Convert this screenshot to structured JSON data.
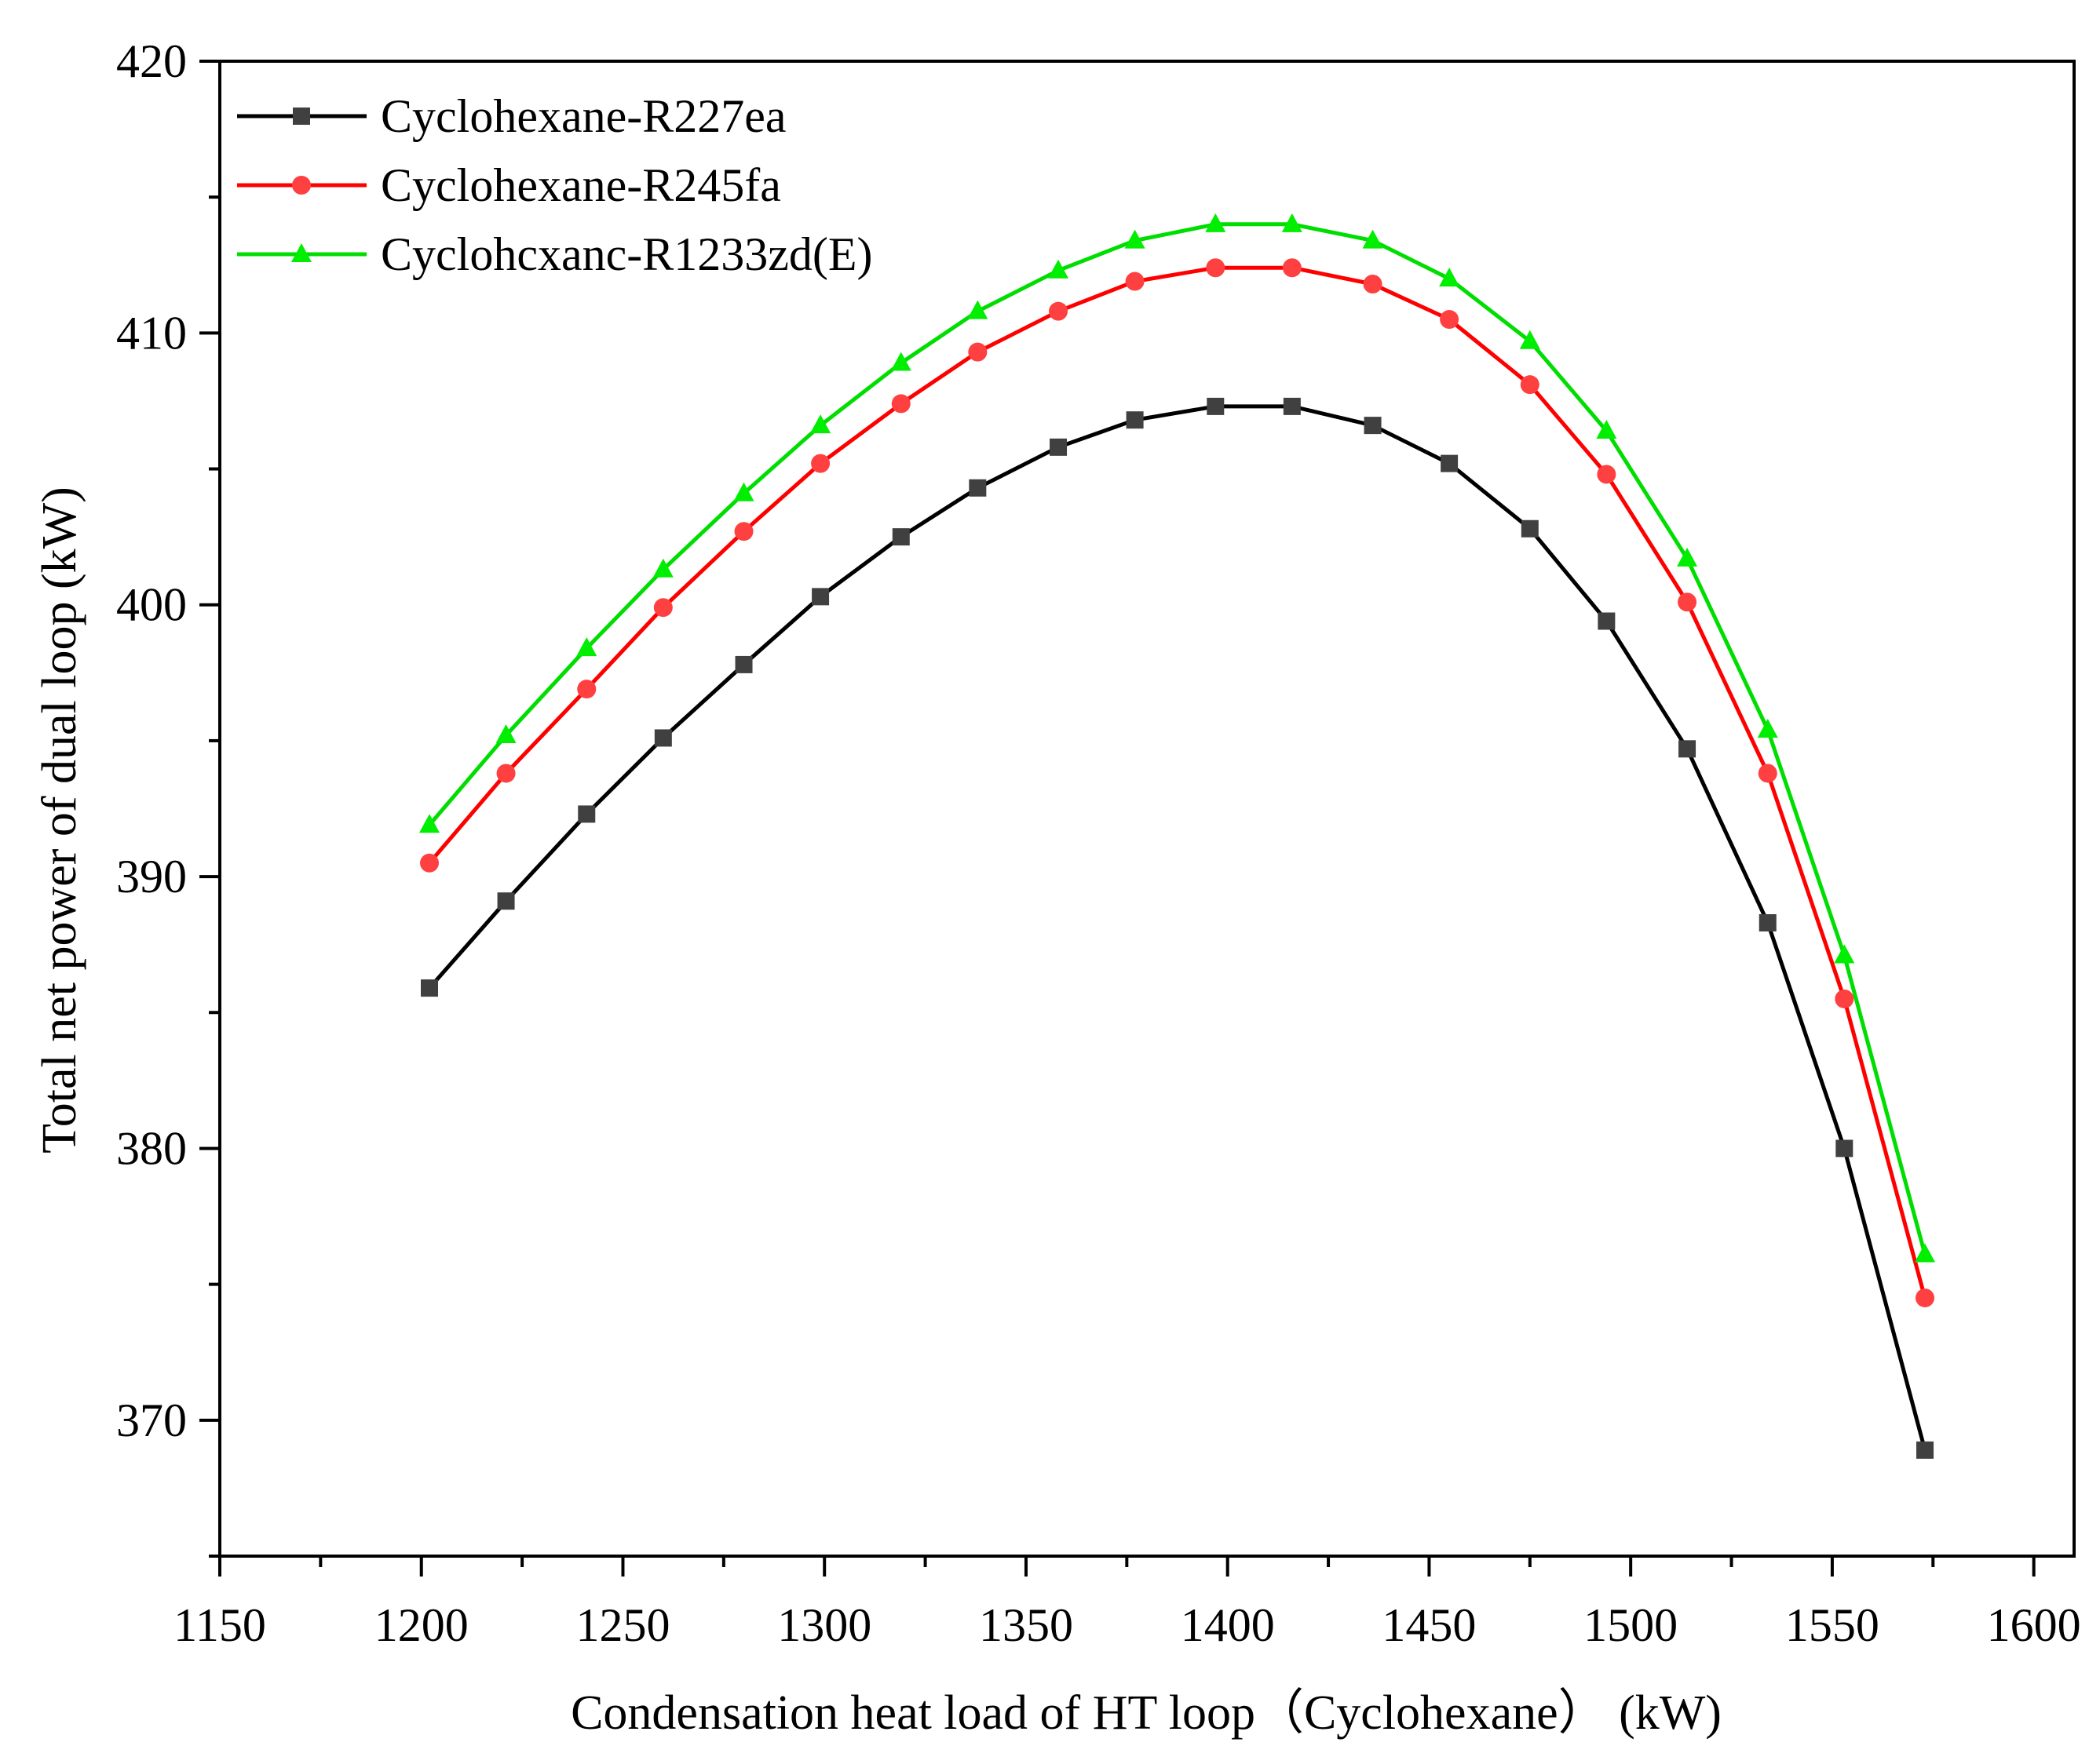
{
  "chart_data": {
    "type": "line",
    "title": "",
    "xlabel": "Condensation heat load of HT loop（Cyclohexane） (kW)",
    "ylabel": "Total net power of dual loop (kW)",
    "xlim": [
      1150,
      1610
    ],
    "ylim": [
      365,
      420
    ],
    "xticks": [
      1150,
      1200,
      1250,
      1300,
      1350,
      1400,
      1450,
      1500,
      1550,
      1600
    ],
    "yticks": [
      370,
      380,
      390,
      400,
      410,
      420
    ],
    "x_tick_labels": [
      "1150",
      "1200",
      "1250",
      "1300",
      "1350",
      "1400",
      "1450",
      "1500",
      "1550",
      "1600"
    ],
    "y_tick_labels": [
      "370",
      "380",
      "390",
      "400",
      "410",
      "420"
    ],
    "grid": false,
    "legend_position": "top-left",
    "x": [
      1202,
      1221,
      1241,
      1260,
      1280,
      1299,
      1319,
      1338,
      1358,
      1377,
      1397,
      1416,
      1436,
      1455,
      1475,
      1494,
      1514,
      1534,
      1553,
      1573
    ],
    "series": [
      {
        "name": "Cyclohexane-R227ea",
        "color": "#000000",
        "marker_color": "#404040",
        "marker": "square",
        "values": [
          385.9,
          389.1,
          392.3,
          395.1,
          397.8,
          400.3,
          402.5,
          404.3,
          405.8,
          406.8,
          407.3,
          407.3,
          406.6,
          405.2,
          402.8,
          399.4,
          394.7,
          388.3,
          380.0,
          368.9
        ]
      },
      {
        "name": "Cyclohexane-R245fa",
        "color": "#ff0000",
        "marker_color": "#ff4040",
        "marker": "circle",
        "values": [
          390.5,
          393.8,
          396.9,
          399.9,
          402.7,
          405.2,
          407.4,
          409.3,
          410.8,
          411.9,
          412.4,
          412.4,
          411.8,
          410.5,
          408.1,
          404.8,
          400.1,
          393.8,
          385.5,
          374.5
        ]
      },
      {
        "name": "Cyclohcxanc-R1233zd(E)",
        "color": "#00dd00",
        "marker_color": "#00ee00",
        "marker": "triangle",
        "values": [
          391.9,
          395.2,
          398.4,
          401.3,
          404.1,
          406.6,
          408.9,
          410.8,
          412.3,
          413.4,
          414.0,
          414.0,
          413.4,
          412.0,
          409.7,
          406.4,
          401.7,
          395.4,
          387.1,
          376.1
        ]
      }
    ]
  }
}
